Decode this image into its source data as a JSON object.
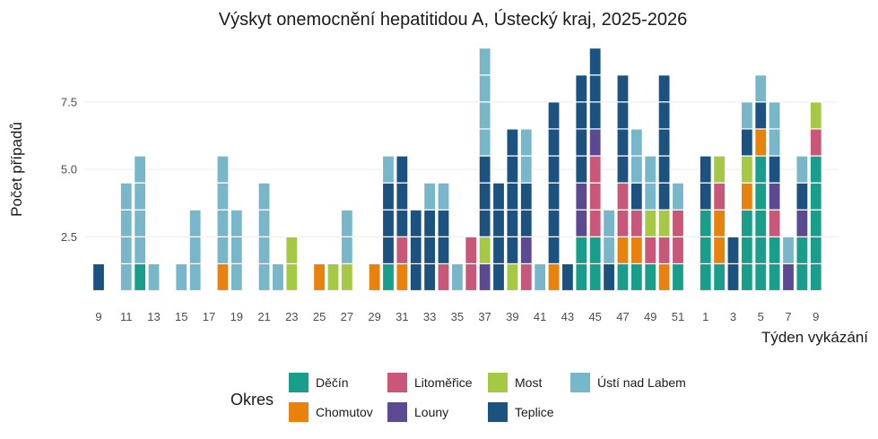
{
  "chart_data": {
    "type": "bar",
    "stacked": true,
    "title": "Výskyt onemocnění hepatitidou A, Ústecký kraj, 2025-2026",
    "xlabel": "Týden vykázání",
    "ylabel": "Počet případů",
    "yticks": [
      2.5,
      5.0,
      7.5
    ],
    "ytick_labels": [
      "2.5",
      "5.0",
      "7.5"
    ],
    "ylim": [
      0,
      9.5
    ],
    "grid": true,
    "legend_title": "Okres",
    "legend_position": "bottom",
    "series": [
      {
        "key": "decin",
        "name": "Děčín",
        "color": "#1a9e8c"
      },
      {
        "key": "chomutov",
        "name": "Chomutov",
        "color": "#e8820c"
      },
      {
        "key": "litomerice",
        "name": "Litoměřice",
        "color": "#c9577a"
      },
      {
        "key": "louny",
        "name": "Louny",
        "color": "#5b4a92"
      },
      {
        "key": "most",
        "name": "Most",
        "color": "#a5c845"
      },
      {
        "key": "teplice",
        "name": "Teplice",
        "color": "#1b5280"
      },
      {
        "key": "usti",
        "name": "Ústí nad Labem",
        "color": "#78b7c9"
      }
    ],
    "stack_order": [
      "decin",
      "chomutov",
      "litomerice",
      "louny",
      "most",
      "teplice",
      "usti"
    ],
    "x_tick_labels": [
      "9",
      "11",
      "13",
      "15",
      "17",
      "19",
      "21",
      "23",
      "25",
      "27",
      "29",
      "31",
      "33",
      "35",
      "37",
      "39",
      "41",
      "43",
      "45",
      "47",
      "49",
      "51",
      "1",
      "3",
      "5",
      "7",
      "9"
    ],
    "weeks": [
      {
        "label": "9",
        "counts": {
          "teplice": 1
        }
      },
      {
        "label": "10",
        "counts": {}
      },
      {
        "label": "11",
        "counts": {
          "usti": 4
        }
      },
      {
        "label": "12",
        "counts": {
          "decin": 1,
          "usti": 4
        }
      },
      {
        "label": "13",
        "counts": {
          "usti": 1
        }
      },
      {
        "label": "14",
        "counts": {}
      },
      {
        "label": "15",
        "counts": {
          "usti": 1
        }
      },
      {
        "label": "16",
        "counts": {
          "usti": 3
        }
      },
      {
        "label": "17",
        "counts": {}
      },
      {
        "label": "18",
        "counts": {
          "chomutov": 1,
          "usti": 4
        }
      },
      {
        "label": "19",
        "counts": {
          "usti": 3
        }
      },
      {
        "label": "20",
        "counts": {}
      },
      {
        "label": "21",
        "counts": {
          "usti": 4
        }
      },
      {
        "label": "22",
        "counts": {
          "usti": 1
        }
      },
      {
        "label": "23",
        "counts": {
          "most": 2
        }
      },
      {
        "label": "24",
        "counts": {}
      },
      {
        "label": "25",
        "counts": {
          "chomutov": 1
        }
      },
      {
        "label": "26",
        "counts": {
          "most": 1
        }
      },
      {
        "label": "27",
        "counts": {
          "most": 1,
          "usti": 2
        }
      },
      {
        "label": "28",
        "counts": {}
      },
      {
        "label": "29",
        "counts": {
          "chomutov": 1
        }
      },
      {
        "label": "30",
        "counts": {
          "decin": 1,
          "teplice": 3,
          "usti": 1
        }
      },
      {
        "label": "31",
        "counts": {
          "chomutov": 1,
          "litomerice": 1,
          "teplice": 3
        }
      },
      {
        "label": "32",
        "counts": {
          "teplice": 3
        }
      },
      {
        "label": "33",
        "counts": {
          "teplice": 3,
          "usti": 1
        }
      },
      {
        "label": "34",
        "counts": {
          "litomerice": 1,
          "teplice": 2,
          "usti": 1
        }
      },
      {
        "label": "35",
        "counts": {
          "usti": 1
        }
      },
      {
        "label": "36",
        "counts": {
          "litomerice": 2
        }
      },
      {
        "label": "37",
        "counts": {
          "louny": 1,
          "most": 1,
          "teplice": 3,
          "usti": 4
        }
      },
      {
        "label": "38",
        "counts": {
          "teplice": 4
        }
      },
      {
        "label": "39",
        "counts": {
          "most": 1,
          "teplice": 5
        }
      },
      {
        "label": "40",
        "counts": {
          "litomerice": 1,
          "louny": 1,
          "teplice": 2,
          "usti": 2
        }
      },
      {
        "label": "41",
        "counts": {
          "usti": 1
        }
      },
      {
        "label": "42",
        "counts": {
          "chomutov": 1,
          "teplice": 6
        }
      },
      {
        "label": "43",
        "counts": {
          "teplice": 1
        }
      },
      {
        "label": "44",
        "counts": {
          "decin": 2,
          "louny": 2,
          "teplice": 4
        }
      },
      {
        "label": "45",
        "counts": {
          "decin": 2,
          "litomerice": 3,
          "louny": 1,
          "teplice": 3
        }
      },
      {
        "label": "46",
        "counts": {
          "teplice": 1,
          "usti": 2
        }
      },
      {
        "label": "47",
        "counts": {
          "decin": 1,
          "chomutov": 1,
          "litomerice": 2,
          "teplice": 4
        }
      },
      {
        "label": "48",
        "counts": {
          "decin": 1,
          "chomutov": 1,
          "litomerice": 1,
          "teplice": 1,
          "usti": 2
        }
      },
      {
        "label": "49",
        "counts": {
          "decin": 1,
          "litomerice": 1,
          "most": 1,
          "usti": 2
        }
      },
      {
        "label": "50",
        "counts": {
          "chomutov": 1,
          "litomerice": 1,
          "most": 1,
          "teplice": 5
        }
      },
      {
        "label": "51",
        "counts": {
          "decin": 1,
          "litomerice": 2,
          "usti": 1
        }
      },
      {
        "label": "52",
        "counts": {}
      },
      {
        "label": "1",
        "counts": {
          "decin": 3,
          "teplice": 2
        }
      },
      {
        "label": "2",
        "counts": {
          "decin": 1,
          "chomutov": 2,
          "litomerice": 1,
          "most": 1
        }
      },
      {
        "label": "3",
        "counts": {
          "teplice": 2
        }
      },
      {
        "label": "4",
        "counts": {
          "decin": 3,
          "chomutov": 1,
          "most": 1,
          "teplice": 1,
          "usti": 1
        }
      },
      {
        "label": "5",
        "counts": {
          "decin": 5,
          "chomutov": 1,
          "teplice": 1,
          "usti": 1
        }
      },
      {
        "label": "6",
        "counts": {
          "decin": 2,
          "litomerice": 1,
          "louny": 1,
          "teplice": 1,
          "usti": 2
        }
      },
      {
        "label": "7",
        "counts": {
          "louny": 1,
          "usti": 1
        }
      },
      {
        "label": "8",
        "counts": {
          "decin": 2,
          "louny": 1,
          "teplice": 1,
          "usti": 1
        }
      },
      {
        "label": "9",
        "counts": {
          "decin": 5,
          "litomerice": 1,
          "most": 1
        }
      }
    ]
  }
}
